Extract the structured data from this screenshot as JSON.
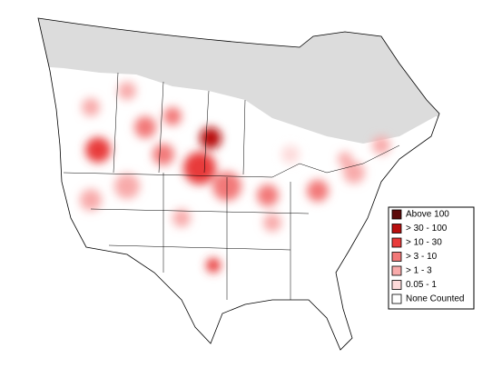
{
  "legend": {
    "items": [
      {
        "label": "Above 100",
        "color": "#5c0a0a"
      },
      {
        "label": "> 30 - 100",
        "color": "#b80f0f"
      },
      {
        "label": "> 10 - 30",
        "color": "#e83a3a"
      },
      {
        "label": "> 3 - 10",
        "color": "#f27878"
      },
      {
        "label": "> 1 - 3",
        "color": "#f8aaaa"
      },
      {
        "label": "0.05 - 1",
        "color": "#fddada"
      },
      {
        "label": "None Counted",
        "color": "#ffffff"
      }
    ]
  }
}
